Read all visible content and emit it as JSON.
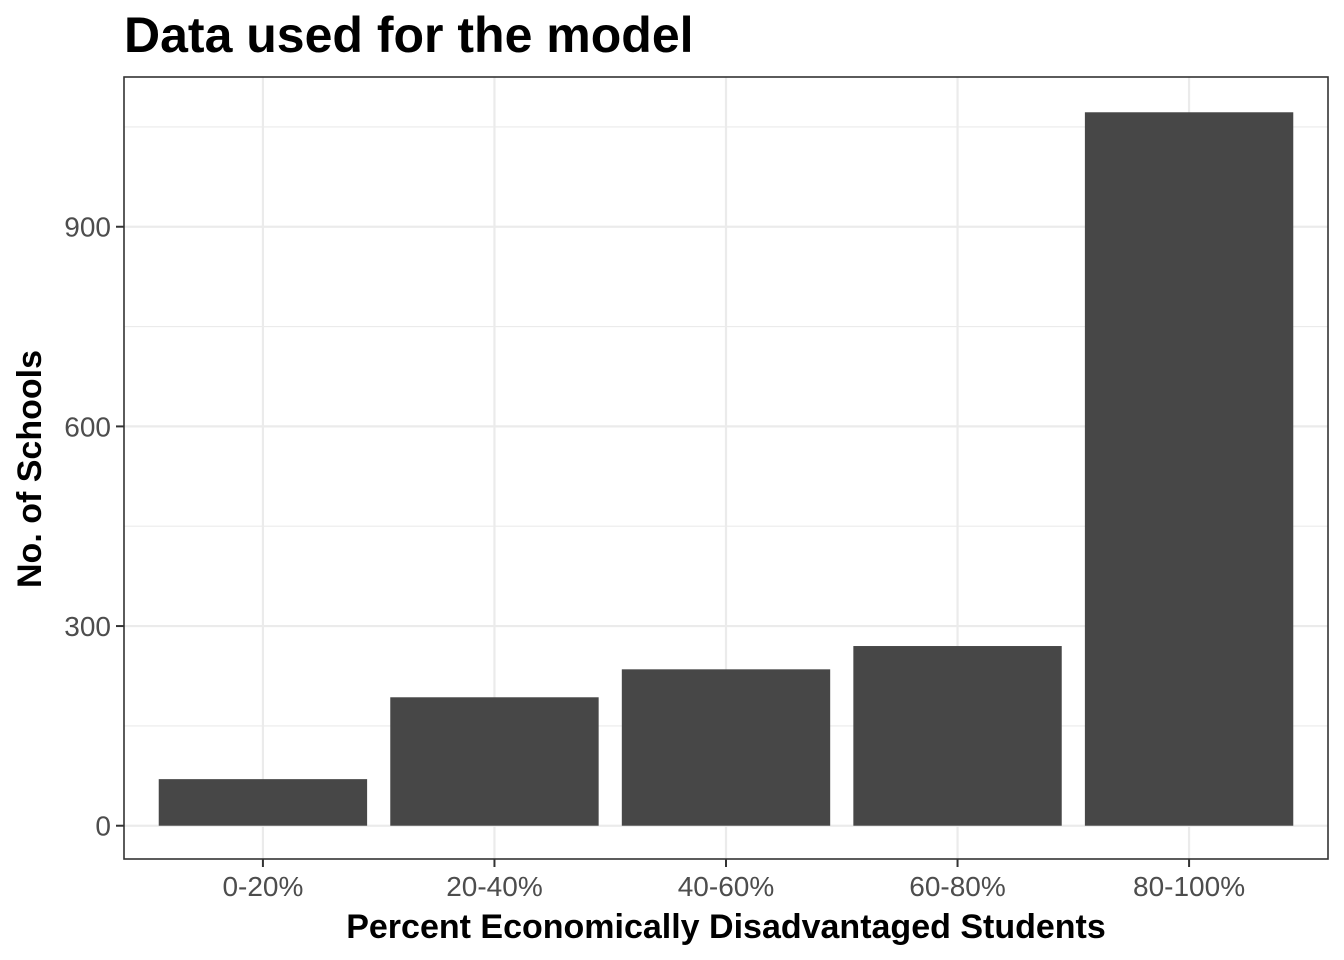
{
  "chart_data": {
    "type": "bar",
    "title": "Data used for the model",
    "xlabel": "Percent Economically Disadvantaged Students",
    "ylabel": "No. of Schools",
    "categories": [
      "0-20%",
      "20-40%",
      "40-60%",
      "60-80%",
      "80-100%"
    ],
    "values": [
      70,
      193,
      235,
      270,
      1072
    ],
    "ylim": [
      -50,
      1125
    ],
    "y_ticks": [
      0,
      300,
      600,
      900
    ],
    "y_tick_labels": [
      "0",
      "300",
      "600",
      "900"
    ],
    "grid": true,
    "legend": "none",
    "bar_color": "#474747",
    "grid_color": "#ebebeb",
    "theme": "bw"
  }
}
